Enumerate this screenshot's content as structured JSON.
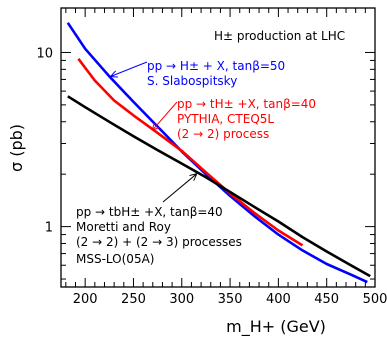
{
  "chart_data": {
    "type": "line",
    "title": "H± production at LHC",
    "xlabel": "m_H+ (GeV)",
    "ylabel": "σ (pb)",
    "xlim": [
      175,
      500
    ],
    "ylim": [
      0.45,
      18
    ],
    "yscale": "log",
    "xticks": [
      200,
      250,
      300,
      350,
      400,
      450,
      500
    ],
    "yticks": [
      1,
      10
    ],
    "series": [
      {
        "color": "#0000ff",
        "x": [
          182,
          200,
          225,
          250,
          275,
          300,
          325,
          350,
          375,
          400,
          425,
          450,
          475,
          492
        ],
        "y": [
          14.8,
          10.5,
          7.3,
          5.2,
          3.75,
          2.7,
          2.0,
          1.5,
          1.15,
          0.9,
          0.73,
          0.61,
          0.53,
          0.48
        ]
      },
      {
        "color": "#ff0000",
        "x": [
          193,
          210,
          230,
          250,
          275,
          300,
          325,
          350,
          375,
          400,
          425
        ],
        "y": [
          9.2,
          6.9,
          5.3,
          4.35,
          3.45,
          2.72,
          2.05,
          1.55,
          1.2,
          0.95,
          0.78
        ]
      },
      {
        "color": "#000000",
        "x": [
          182,
          200,
          225,
          250,
          275,
          300,
          325,
          350,
          375,
          400,
          425,
          450,
          475,
          495
        ],
        "y": [
          5.6,
          4.85,
          4.0,
          3.3,
          2.75,
          2.3,
          1.92,
          1.58,
          1.3,
          1.07,
          0.87,
          0.72,
          0.6,
          0.52
        ]
      }
    ],
    "annotations": {
      "blue": [
        "pp → H± + X, tanβ=50",
        "S. Slabospitsky"
      ],
      "red": [
        "pp → tH± +X, tanβ=40",
        "PYTHIA, CTEQ5L",
        "(2 → 2) process"
      ],
      "black": [
        "pp → tbH± +X, tanβ=40",
        "Moretti and Roy",
        "(2 → 2) + (2 → 3) processes",
        "MSS-LO(05A)"
      ]
    }
  }
}
